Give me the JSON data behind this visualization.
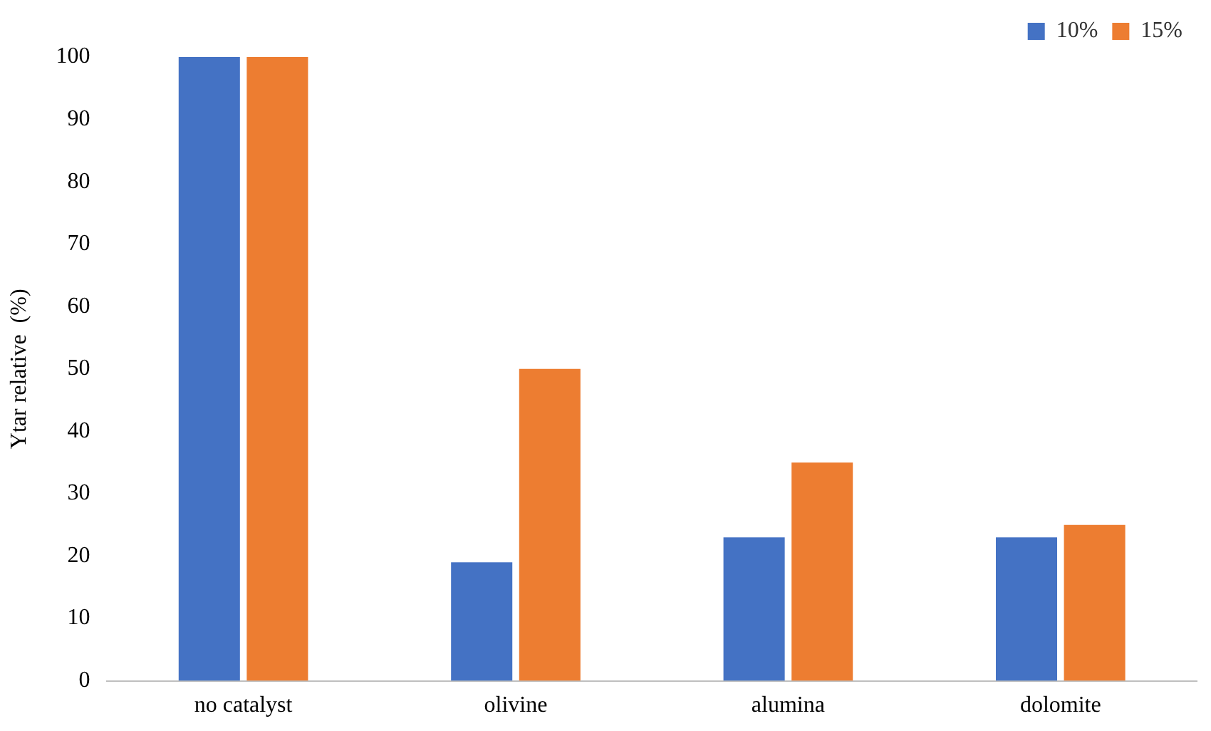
{
  "chart_data": {
    "type": "bar",
    "ylabel": "Ytar relative  (%)",
    "categories": [
      "no catalyst",
      "olivine",
      "alumina",
      "dolomite"
    ],
    "series": [
      {
        "name": "10%",
        "color": "#4472c4",
        "values": [
          100,
          19,
          23,
          23
        ]
      },
      {
        "name": "15%",
        "color": "#ed7d31",
        "values": [
          100,
          50,
          35,
          25
        ]
      }
    ],
    "ylim": [
      0,
      100
    ],
    "yticks": [
      0,
      10,
      20,
      30,
      40,
      50,
      60,
      70,
      80,
      90,
      100
    ],
    "grid": false,
    "legend": "top right"
  }
}
